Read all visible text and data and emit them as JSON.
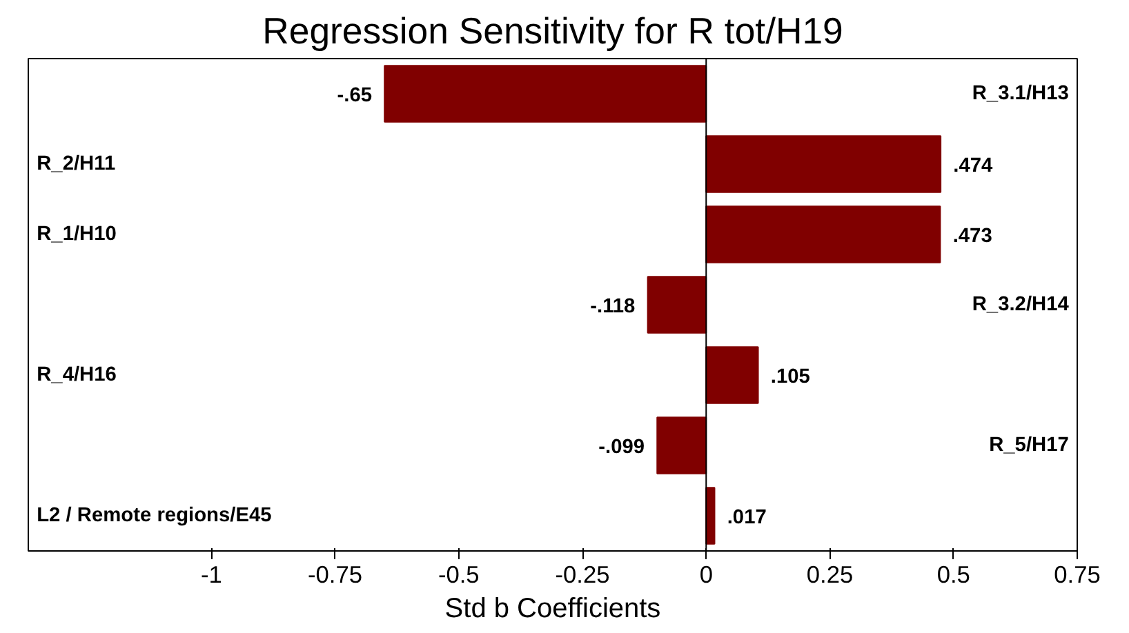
{
  "chart_data": {
    "type": "bar",
    "orientation": "horizontal",
    "title": "Regression Sensitivity for R tot/H19",
    "xlabel": "Std b Coefficients",
    "categories": [
      "R_3.1/H13",
      "R_2/H11",
      "R_1/H10",
      "R_3.2/H14",
      "R_4/H16",
      "R_5/H17",
      "L2 / Remote regions/E45"
    ],
    "values": [
      -0.65,
      0.474,
      0.473,
      -0.118,
      0.105,
      -0.099,
      0.017
    ],
    "value_labels": [
      "-.65",
      ".474",
      ".473",
      "-.118",
      ".105",
      "-.099",
      ".017"
    ],
    "color": "#800000",
    "xlim": [
      -1.37,
      0.75
    ],
    "xticks": [
      -1,
      -0.75,
      -0.5,
      -0.25,
      0,
      0.25,
      0.5,
      0.75
    ],
    "ref_lines": [
      {
        "axis": "x",
        "value": 0,
        "color": "#000000"
      }
    ],
    "grid": false
  }
}
